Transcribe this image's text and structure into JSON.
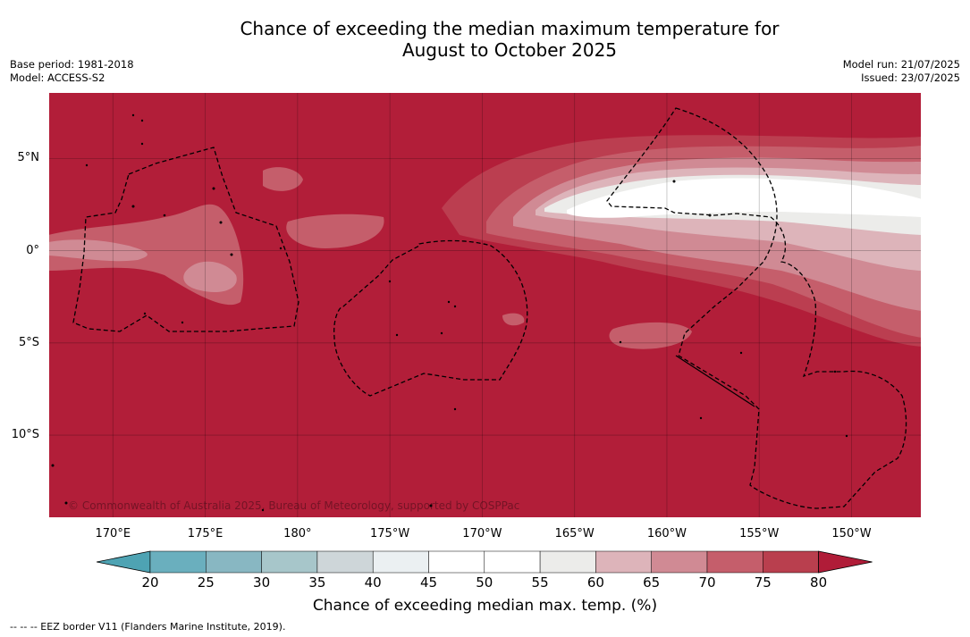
{
  "title_line1": "Chance of exceeding the median maximum temperature for",
  "title_line2": "August to October 2025",
  "base_period": "Base period: 1981-2018",
  "model": "Model: ACCESS-S2",
  "model_run": "Model run: 21/07/2025",
  "issued": "Issued: 23/07/2025",
  "copyright": "© Commonwealth of Australia 2025, Bureau of Meteorology, supported by COSPPac",
  "footer": "--  --  -- EEZ border V11 (Flanders Marine Institute, 2019).",
  "lon_ticks": [
    {
      "label": "170°E",
      "lon": 170
    },
    {
      "label": "175°E",
      "lon": 175
    },
    {
      "label": "180°",
      "lon": 180
    },
    {
      "label": "175°W",
      "lon": 185
    },
    {
      "label": "170°W",
      "lon": 190
    },
    {
      "label": "165°W",
      "lon": 195
    },
    {
      "label": "160°W",
      "lon": 200
    },
    {
      "label": "155°W",
      "lon": 205
    },
    {
      "label": "150°W",
      "lon": 210
    }
  ],
  "lat_ticks": [
    {
      "label": "5°N",
      "lat": 5
    },
    {
      "label": "0°",
      "lat": 0
    },
    {
      "label": "5°S",
      "lat": -5
    },
    {
      "label": "10°S",
      "lat": -10
    }
  ],
  "extent": {
    "lon_min": 166.5,
    "lon_max": 213.8,
    "lat_min": -14.5,
    "lat_max": 8.6
  },
  "colorbar": {
    "title": "Chance of exceeding median max. temp. (%)",
    "labels": [
      "20",
      "25",
      "30",
      "35",
      "40",
      "45",
      "50",
      "55",
      "60",
      "65",
      "70",
      "75",
      "80"
    ],
    "colors": [
      "#6aafbe",
      "#88b7c2",
      "#a7c6ca",
      "#ced6d9",
      "#ebf0f2",
      "#ffffff",
      "#ffffff",
      "#ececea",
      "#ddb4ba",
      "#d08a94",
      "#c55e6b",
      "#b93f4e"
    ],
    "under_color": "#4ea3b3",
    "over_color": "#b01c38"
  },
  "field": {
    "background": "#b21e39",
    "level_75_70": "#bb3e50",
    "level_70_65": "#c55e6b",
    "level_65_60": "#d08a94",
    "level_60_55": "#ddb4ba",
    "level_55_50": "#ececea",
    "level_50_45": "#ffffff"
  }
}
